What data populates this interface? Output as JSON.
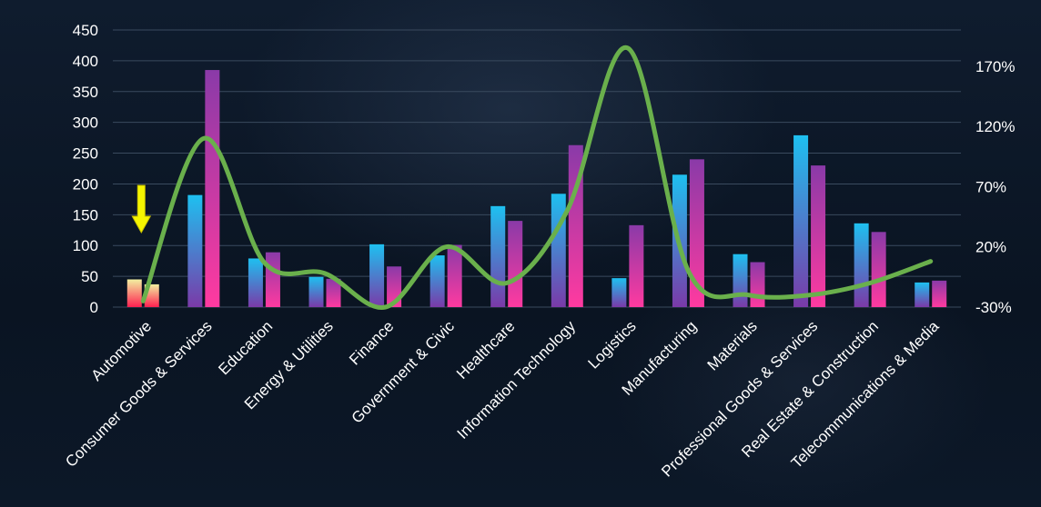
{
  "chart_data": {
    "type": "bar",
    "categories": [
      "Automotive",
      "Consumer Goods & Services",
      "Education",
      "Energy & Utilities",
      "Finance",
      "Government & Civic",
      "Healthcare",
      "Information Technology",
      "Logistics",
      "Manufacturing",
      "Materials",
      "Professional Goods & Services",
      "Real Estate & Construction",
      "Telecommunications & Media"
    ],
    "series": [
      {
        "values": [
          45,
          182,
          79,
          49,
          102,
          84,
          164,
          184,
          47,
          215,
          86,
          279,
          136,
          40
        ],
        "axis": "left",
        "gradient": [
          "#1ec0f0",
          "#7a3aa8"
        ]
      },
      {
        "values": [
          37,
          385,
          89,
          46,
          66,
          101,
          140,
          263,
          133,
          240,
          73,
          230,
          122,
          43
        ],
        "axis": "left",
        "gradient": [
          "#8a3aa8",
          "#ff3aa0"
        ]
      },
      {
        "type": "line",
        "axis": "right",
        "color": "#6ab04c",
        "values": [
          -25,
          110,
          7,
          -2,
          -30,
          20,
          -10,
          50,
          185,
          0,
          -20,
          -20,
          -10,
          8
        ]
      }
    ],
    "highlight": {
      "category": "Automotive",
      "gradient": [
        "#f2f0a0",
        "#ff2050"
      ],
      "marker": "yellow-down-arrow",
      "marker_color": "#f5f500"
    },
    "left_axis": {
      "ylim": [
        0,
        450
      ],
      "ticks": [
        "0",
        "50",
        "100",
        "150",
        "200",
        "250",
        "300",
        "350",
        "400",
        "450"
      ]
    },
    "right_axis": {
      "ylim": [
        -30,
        200
      ],
      "ticks": [
        "-30%",
        "20%",
        "70%",
        "120%",
        "170%"
      ]
    },
    "grid": true,
    "colors": {
      "background": "#0b1523",
      "grid": "#3a4a5e",
      "text": "#ffffff"
    }
  }
}
